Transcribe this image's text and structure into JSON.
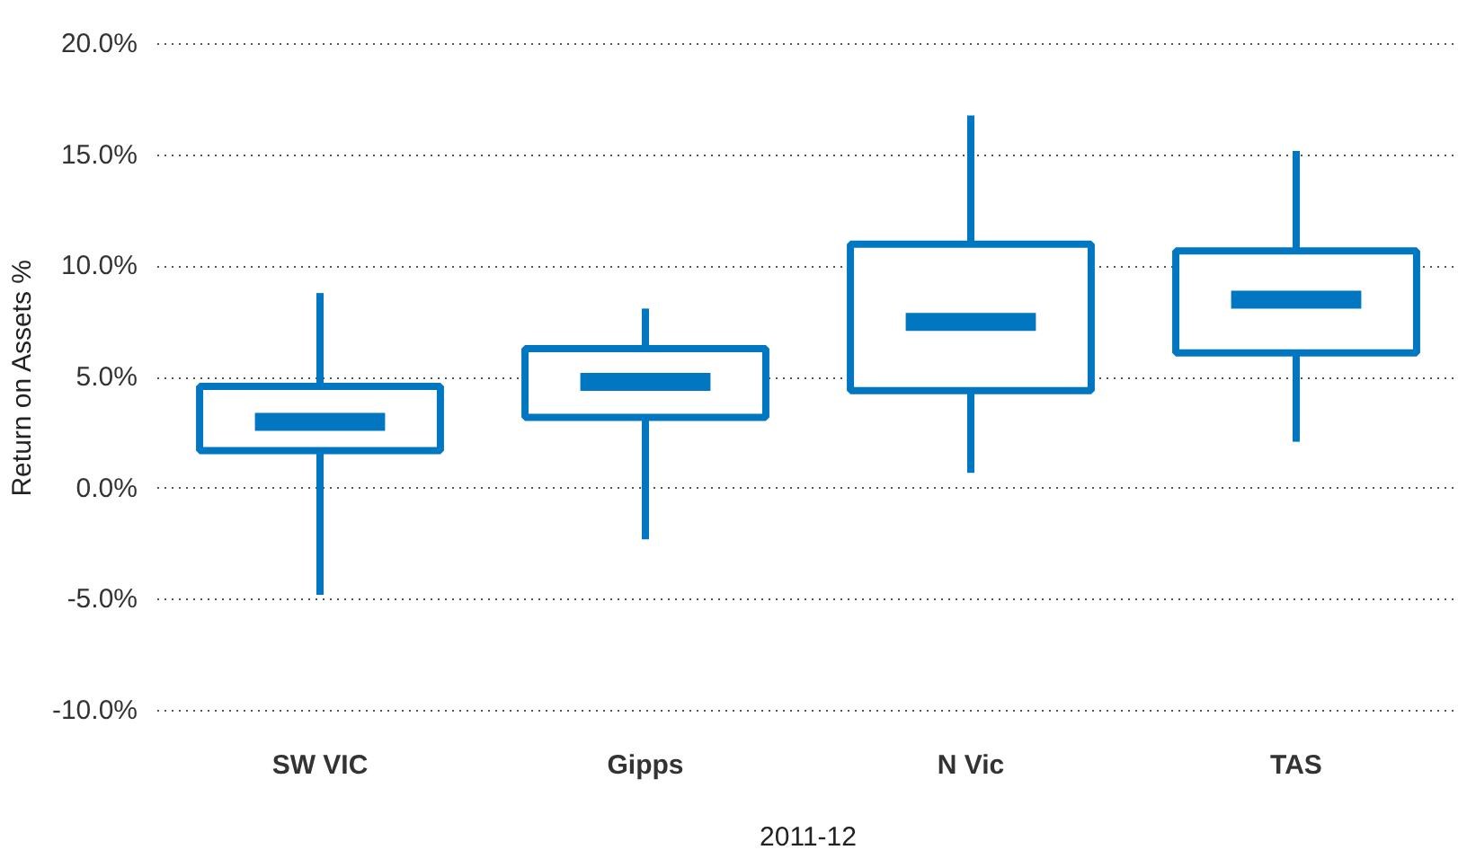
{
  "chart_data": {
    "type": "box",
    "xlabel": "2011-12",
    "ylabel": "Return on Assets %",
    "categories": [
      "SW VIC",
      "Gipps",
      "N Vic",
      "TAS"
    ],
    "color": "#0077c0",
    "boxes": [
      {
        "low": -4.8,
        "q1": 1.7,
        "median": 3.0,
        "q3": 4.6,
        "high": 8.8
      },
      {
        "low": -2.3,
        "q1": 3.2,
        "median": 4.8,
        "q3": 6.3,
        "high": 8.1
      },
      {
        "low": 0.7,
        "q1": 4.4,
        "median": 7.5,
        "q3": 11.0,
        "high": 16.8
      },
      {
        "low": 2.1,
        "q1": 6.1,
        "median": 8.5,
        "q3": 10.7,
        "high": 15.2
      }
    ],
    "ylim": [
      -10,
      20
    ],
    "yticks": [
      {
        "value": -10,
        "label": "-10.0%"
      },
      {
        "value": -5,
        "label": "-5.0%"
      },
      {
        "value": 0,
        "label": "0.0%"
      },
      {
        "value": 5,
        "label": "5.0%"
      },
      {
        "value": 10,
        "label": "10.0%"
      },
      {
        "value": 15,
        "label": "15.0%"
      },
      {
        "value": 20,
        "label": "20.0%"
      }
    ],
    "grid": "y"
  }
}
